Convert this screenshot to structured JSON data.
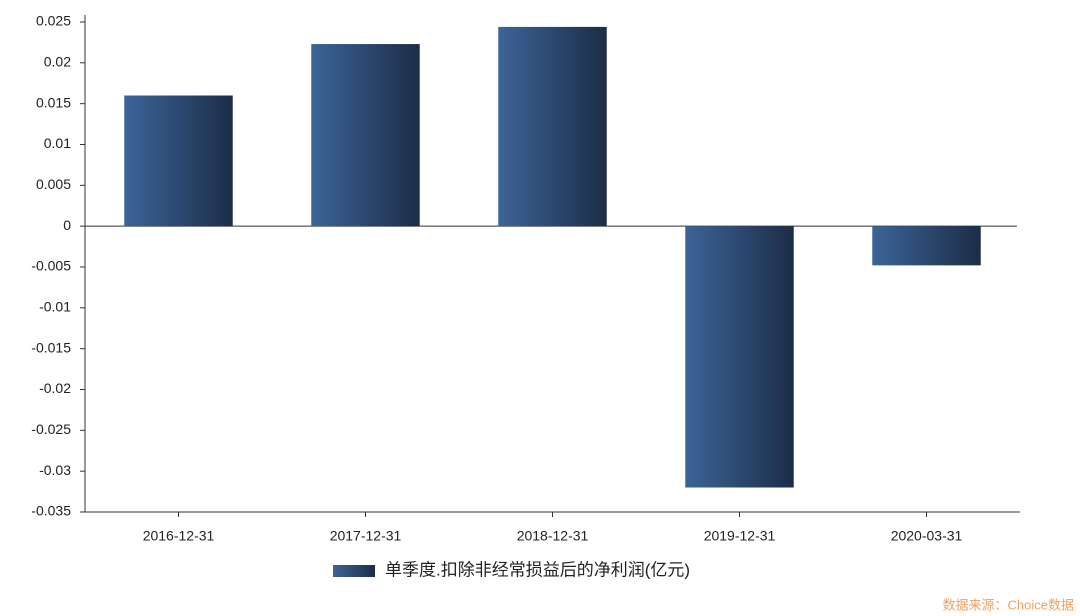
{
  "chart_data": {
    "type": "bar",
    "categories": [
      "2016-12-31",
      "2017-12-31",
      "2018-12-31",
      "2019-12-31",
      "2020-03-31"
    ],
    "series": [
      {
        "name": "单季度.扣除非经常损益后的净利润(亿元)",
        "colors": [
          "#3c6498",
          "#1c2d47"
        ],
        "values": [
          0.016,
          0.0223,
          0.0244,
          -0.032,
          -0.0048
        ]
      }
    ],
    "ylim": [
      -0.035,
      0.025
    ],
    "yticks": [
      -0.035,
      -0.03,
      -0.025,
      -0.02,
      -0.015,
      -0.01,
      -0.005,
      0,
      0.005,
      0.01,
      0.015,
      0.02,
      0.025
    ],
    "source": "数据来源：Choice数据"
  }
}
